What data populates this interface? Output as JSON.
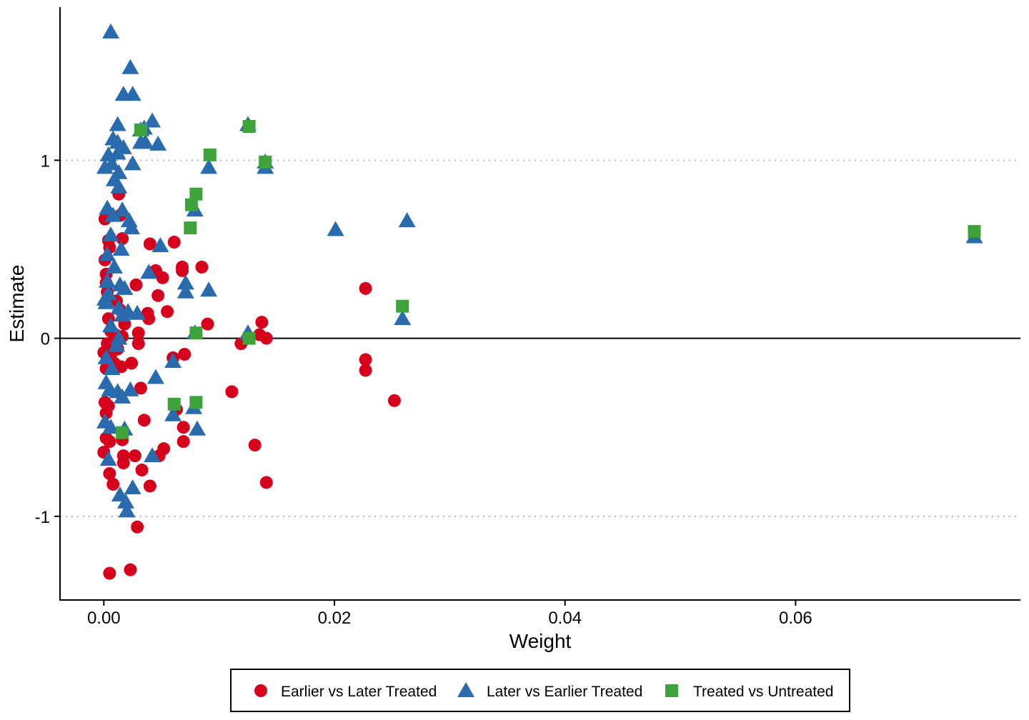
{
  "colors": {
    "earlier": "#D7001C",
    "later": "#2A6BAE",
    "untreated": "#3DA33A",
    "grid": "#b5b5b5",
    "axis": "#000000"
  },
  "chart_data": {
    "type": "scatter",
    "title": "",
    "xlabel": "Weight",
    "ylabel": "Estimate",
    "xlim": [
      -0.0038,
      0.0795
    ],
    "ylim": [
      -1.47,
      1.86
    ],
    "x_ticks": [
      {
        "value": 0.0,
        "label": "0.00"
      },
      {
        "value": 0.02,
        "label": "0.02"
      },
      {
        "value": 0.04,
        "label": "0.04"
      },
      {
        "value": 0.06,
        "label": "0.06"
      }
    ],
    "y_ticks": [
      {
        "value": -1,
        "label": "-1"
      },
      {
        "value": 0,
        "label": "0"
      },
      {
        "value": 1,
        "label": "1"
      }
    ],
    "grid": "dotted horizontal lines at y = 1 and y = -1; solid reference line at y = 0",
    "legend_position": "bottom",
    "series": [
      {
        "name": "Earlier vs Later Treated",
        "marker": "circle",
        "color_key": "earlier",
        "points": [
          [
            0.0001,
            0.67
          ],
          [
            0.0001,
            0.44
          ],
          [
            0.0002,
            0.36
          ],
          [
            0.0002,
            0.31
          ],
          [
            0.0004,
            0.55
          ],
          [
            0.0005,
            0.51
          ],
          [
            0.0003,
            0.26
          ],
          [
            0.0004,
            0.11
          ],
          [
            0.0006,
            0.04
          ],
          [
            0.0003,
            -0.03
          ],
          [
            0.0,
            -0.08
          ],
          [
            0.0002,
            -0.17
          ],
          [
            0.0006,
            -0.09
          ],
          [
            0.0001,
            -0.36
          ],
          [
            0.0002,
            -0.42
          ],
          [
            0.0004,
            -0.38
          ],
          [
            0.0002,
            -0.56
          ],
          [
            0.0005,
            -0.58
          ],
          [
            0.0,
            -0.64
          ],
          [
            0.0005,
            -0.76
          ],
          [
            0.0008,
            -0.82
          ],
          [
            0.0005,
            -1.32
          ],
          [
            0.0013,
            0.81
          ],
          [
            0.0014,
            0.69
          ],
          [
            0.0016,
            0.56
          ],
          [
            0.0011,
            0.21
          ],
          [
            0.0014,
            0.16
          ],
          [
            0.0018,
            0.08
          ],
          [
            0.001,
            0.02
          ],
          [
            0.0016,
            0.01
          ],
          [
            0.0012,
            -0.06
          ],
          [
            0.0015,
            -0.16
          ],
          [
            0.0009,
            -0.14
          ],
          [
            0.0016,
            -0.57
          ],
          [
            0.0017,
            -0.66
          ],
          [
            0.0017,
            -0.7
          ],
          [
            0.0023,
            -1.3
          ],
          [
            0.0024,
            -0.14
          ],
          [
            0.0028,
            0.3
          ],
          [
            0.003,
            0.03
          ],
          [
            0.003,
            -0.03
          ],
          [
            0.0032,
            -0.28
          ],
          [
            0.0035,
            -0.46
          ],
          [
            0.0027,
            -0.66
          ],
          [
            0.0033,
            -0.74
          ],
          [
            0.0029,
            -1.06
          ],
          [
            0.0039,
            0.11
          ],
          [
            0.0038,
            0.14
          ],
          [
            0.004,
            0.53
          ],
          [
            0.0045,
            0.38
          ],
          [
            0.0047,
            0.24
          ],
          [
            0.0048,
            -0.66
          ],
          [
            0.0051,
            0.34
          ],
          [
            0.0052,
            -0.62
          ],
          [
            0.004,
            -0.83
          ],
          [
            0.0055,
            0.15
          ],
          [
            0.006,
            -0.11
          ],
          [
            0.0061,
            0.54
          ],
          [
            0.0063,
            -0.4
          ],
          [
            0.0068,
            0.4
          ],
          [
            0.0068,
            0.38
          ],
          [
            0.0069,
            -0.5
          ],
          [
            0.0069,
            -0.58
          ],
          [
            0.007,
            -0.09
          ],
          [
            0.0085,
            0.4
          ],
          [
            0.009,
            0.08
          ],
          [
            0.0111,
            -0.3
          ],
          [
            0.0119,
            -0.03
          ],
          [
            0.0131,
            -0.6
          ],
          [
            0.0135,
            0.02
          ],
          [
            0.0137,
            0.09
          ],
          [
            0.0141,
            0.0
          ],
          [
            0.0141,
            -0.81
          ],
          [
            0.0227,
            0.28
          ],
          [
            0.0227,
            -0.12
          ],
          [
            0.0227,
            -0.18
          ],
          [
            0.0252,
            -0.35
          ]
        ]
      },
      {
        "name": "Later vs Earlier Treated",
        "marker": "triangle",
        "color_key": "later",
        "points": [
          [
            0.0006,
            1.72
          ],
          [
            0.0023,
            1.52
          ],
          [
            0.0017,
            1.37
          ],
          [
            0.0025,
            1.37
          ],
          [
            0.0012,
            1.2
          ],
          [
            0.0035,
            1.18
          ],
          [
            0.0042,
            1.22
          ],
          [
            0.0032,
            1.17
          ],
          [
            0.0008,
            1.12
          ],
          [
            0.0012,
            1.1
          ],
          [
            0.0017,
            1.07
          ],
          [
            0.0032,
            1.1
          ],
          [
            0.0036,
            1.1
          ],
          [
            0.0047,
            1.09
          ],
          [
            0.0004,
            1.03
          ],
          [
            0.0012,
            1.04
          ],
          [
            0.0001,
            0.96
          ],
          [
            0.0007,
            0.98
          ],
          [
            0.0013,
            0.93
          ],
          [
            0.0025,
            0.98
          ],
          [
            0.0009,
            0.89
          ],
          [
            0.0013,
            0.85
          ],
          [
            0.0003,
            0.73
          ],
          [
            0.0008,
            0.69
          ],
          [
            0.0016,
            0.72
          ],
          [
            0.0022,
            0.66
          ],
          [
            0.0024,
            0.62
          ],
          [
            0.0006,
            0.58
          ],
          [
            0.0015,
            0.5
          ],
          [
            0.0049,
            0.52
          ],
          [
            0.0003,
            0.47
          ],
          [
            0.0009,
            0.4
          ],
          [
            0.0039,
            0.37
          ],
          [
            0.0003,
            0.32
          ],
          [
            0.0014,
            0.3
          ],
          [
            0.0018,
            0.28
          ],
          [
            0.0004,
            0.25
          ],
          [
            0.0001,
            0.22
          ],
          [
            0.0002,
            0.2
          ],
          [
            0.0013,
            0.17
          ],
          [
            0.0021,
            0.15
          ],
          [
            0.0029,
            0.14
          ],
          [
            0.0016,
            0.13
          ],
          [
            0.0006,
            0.07
          ],
          [
            0.0013,
            0.0
          ],
          [
            0.0011,
            -0.04
          ],
          [
            0.0002,
            -0.11
          ],
          [
            0.0007,
            -0.17
          ],
          [
            0.0002,
            -0.25
          ],
          [
            0.0005,
            -0.29
          ],
          [
            0.0012,
            -0.3
          ],
          [
            0.0023,
            -0.29
          ],
          [
            0.0016,
            -0.33
          ],
          [
            0.0045,
            -0.22
          ],
          [
            0.0006,
            -0.5
          ],
          [
            0.0001,
            -0.47
          ],
          [
            0.0004,
            -0.68
          ],
          [
            0.0018,
            -0.51
          ],
          [
            0.0042,
            -0.66
          ],
          [
            0.0025,
            -0.84
          ],
          [
            0.0014,
            -0.88
          ],
          [
            0.0019,
            -0.92
          ],
          [
            0.002,
            -0.97
          ],
          [
            0.006,
            -0.13
          ],
          [
            0.006,
            -0.43
          ],
          [
            0.0071,
            0.31
          ],
          [
            0.0071,
            0.26
          ],
          [
            0.0079,
            0.72
          ],
          [
            0.0078,
            -0.39
          ],
          [
            0.0081,
            -0.51
          ],
          [
            0.0091,
            0.27
          ],
          [
            0.0091,
            0.96
          ],
          [
            0.0079,
            0.03
          ],
          [
            0.0125,
            1.2
          ],
          [
            0.0125,
            0.03
          ],
          [
            0.014,
            0.99
          ],
          [
            0.014,
            0.96
          ],
          [
            0.0201,
            0.61
          ],
          [
            0.0259,
            0.11
          ],
          [
            0.0263,
            0.66
          ],
          [
            0.0755,
            0.57
          ]
        ]
      },
      {
        "name": "Treated vs Untreated",
        "marker": "square",
        "color_key": "untreated",
        "points": [
          [
            0.0032,
            1.17
          ],
          [
            0.0126,
            1.19
          ],
          [
            0.0092,
            1.03
          ],
          [
            0.014,
            0.99
          ],
          [
            0.008,
            0.81
          ],
          [
            0.0076,
            0.75
          ],
          [
            0.0075,
            0.62
          ],
          [
            0.008,
            0.03
          ],
          [
            0.0126,
            0.0
          ],
          [
            0.0061,
            -0.37
          ],
          [
            0.008,
            -0.36
          ],
          [
            0.0016,
            -0.53
          ],
          [
            0.0259,
            0.18
          ],
          [
            0.0755,
            0.6
          ]
        ]
      }
    ]
  },
  "legend": {
    "items": [
      {
        "label": "Earlier vs Later Treated",
        "marker": "circle",
        "color_key": "earlier"
      },
      {
        "label": "Later vs Earlier Treated",
        "marker": "triangle",
        "color_key": "later"
      },
      {
        "label": "Treated vs Untreated",
        "marker": "square",
        "color_key": "untreated"
      }
    ]
  }
}
